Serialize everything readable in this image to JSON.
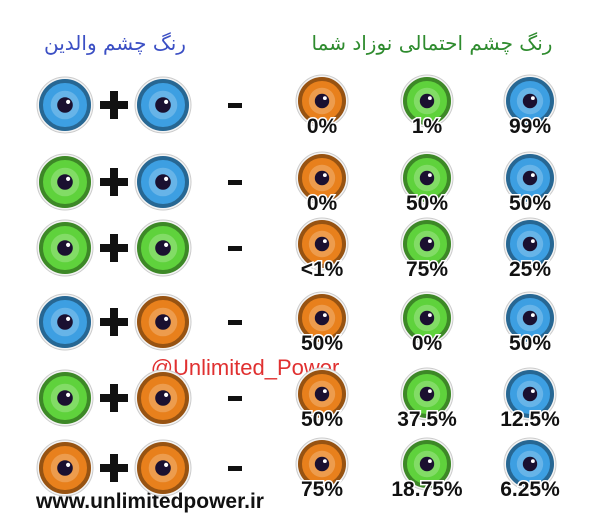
{
  "header": {
    "parents_title": "رنگ چشم والدین",
    "child_title": "رنگ چشم احتمالی نوزاد شما"
  },
  "child_colors": [
    "#e8801c",
    "#5fd23c",
    "#3d9fe2"
  ],
  "rows": [
    {
      "parents": [
        "#3d9fe2",
        "#3d9fe2"
      ],
      "chances": [
        "0%",
        "1%",
        "99%"
      ]
    },
    {
      "parents": [
        "#5fd23c",
        "#3d9fe2"
      ],
      "chances": [
        "0%",
        "50%",
        "50%"
      ]
    },
    {
      "parents": [
        "#5fd23c",
        "#5fd23c"
      ],
      "chances": [
        "<1%",
        "75%",
        "25%"
      ]
    },
    {
      "parents": [
        "#3d9fe2",
        "#e8801c"
      ],
      "chances": [
        "50%",
        "0%",
        "50%"
      ]
    },
    {
      "parents": [
        "#5fd23c",
        "#e8801c"
      ],
      "chances": [
        "50%",
        "37.5%",
        "12.5%"
      ]
    },
    {
      "parents": [
        "#e8801c",
        "#e8801c"
      ],
      "chances": [
        "75%",
        "18.75%",
        "6.25%"
      ]
    }
  ],
  "watermark": "@Unlimited_Power",
  "footer": "www.unlimitedpower.ir"
}
